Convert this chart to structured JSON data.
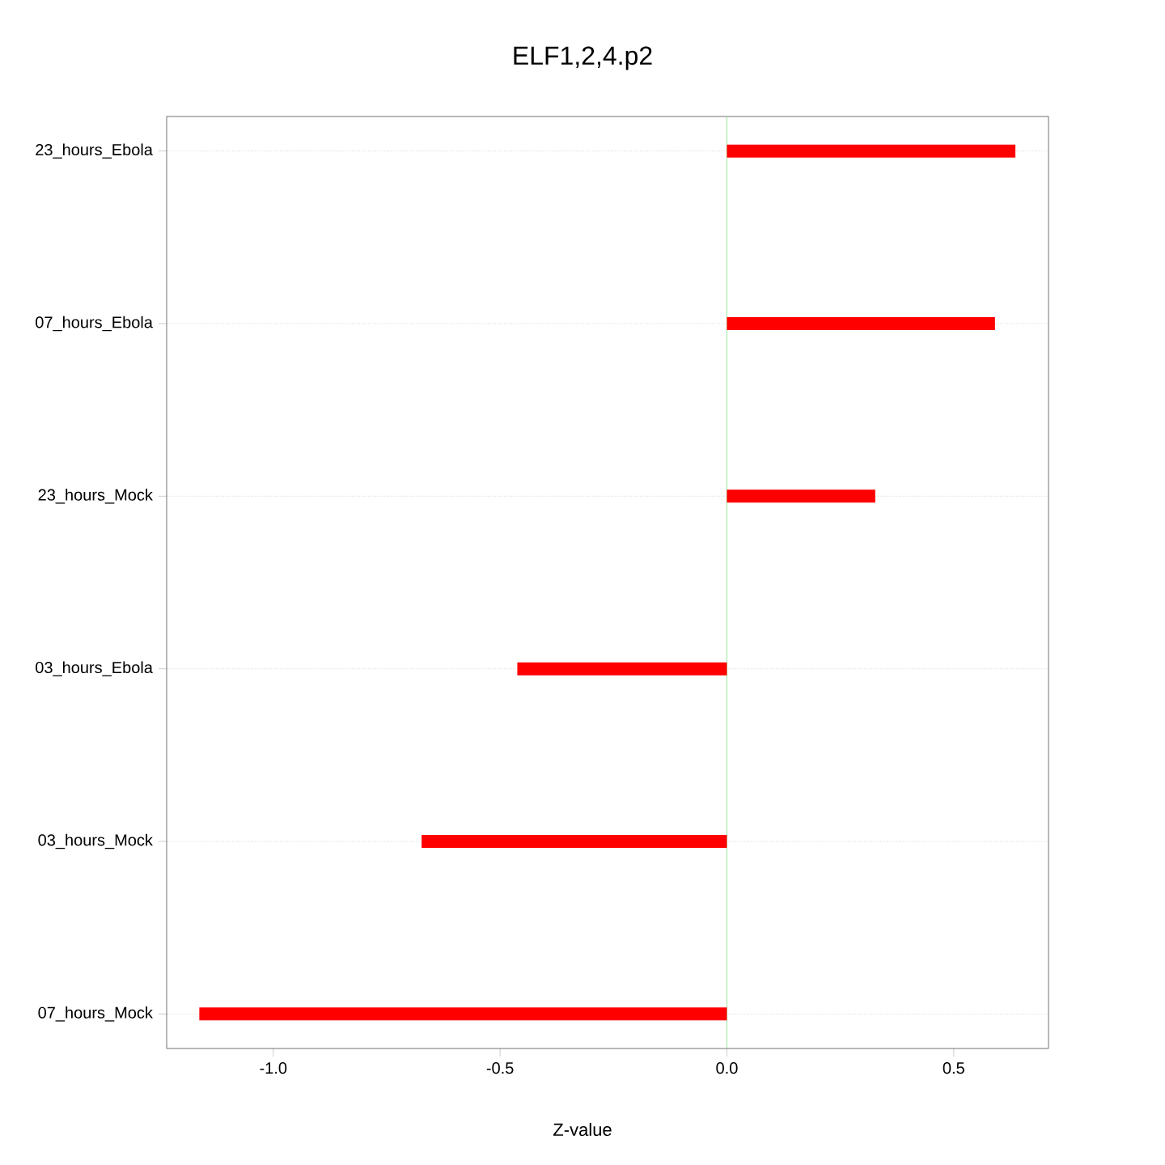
{
  "chart_data": {
    "type": "bar",
    "orientation": "horizontal",
    "title": "ELF1,2,4.p2",
    "xlabel": "Z-value",
    "categories": [
      "23_hours_Ebola",
      "07_hours_Ebola",
      "23_hours_Mock",
      "03_hours_Ebola",
      "03_hours_Mock",
      "07_hours_Mock"
    ],
    "values": [
      0.636,
      0.591,
      0.327,
      -0.462,
      -0.673,
      -1.163
    ],
    "color": "#ff0000",
    "xlim": [
      -1.235,
      0.709
    ],
    "xticks": [
      {
        "value": -1.0,
        "label": "-1.0"
      },
      {
        "value": -0.5,
        "label": "-0.5"
      },
      {
        "value": 0.0,
        "label": "0.0"
      },
      {
        "value": 0.5,
        "label": "0.5"
      }
    ],
    "grid": "y",
    "ref_lines": [
      {
        "axis": "x",
        "value": 0,
        "color": "#80e080"
      }
    ]
  }
}
